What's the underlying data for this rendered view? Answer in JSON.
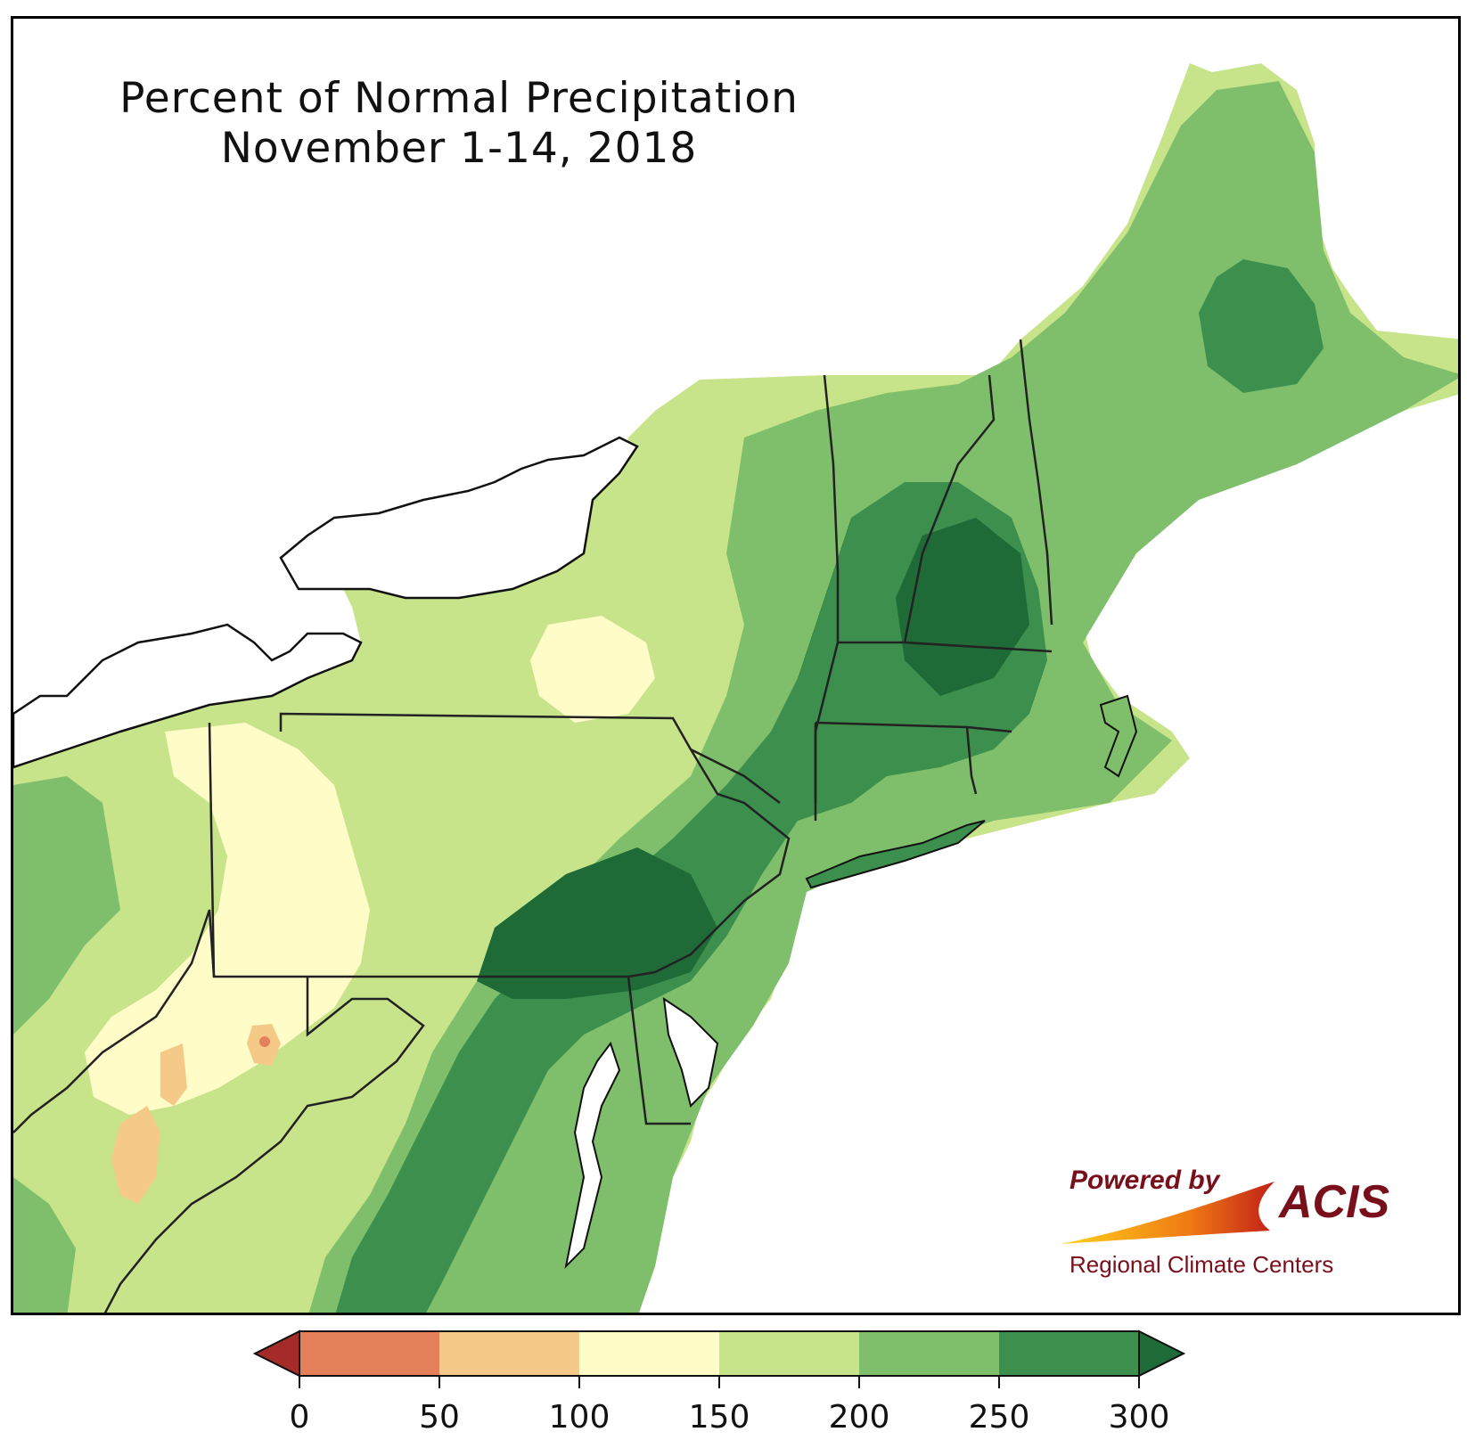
{
  "map": {
    "title_line1": "Percent of Normal Precipitation",
    "title_line2": "November 1-14, 2018",
    "colors": {
      "below_0": "#a52a2a",
      "0_50": "#e4805a",
      "50_100": "#f5c987",
      "100_150": "#fffcc8",
      "150_200": "#c7e48b",
      "200_250": "#7fbf6b",
      "250_300": "#3c8f4d",
      "above_300": "#1f6b38",
      "water": "#ffffff",
      "border": "#111111"
    }
  },
  "legend": {
    "ticks": [
      "0",
      "50",
      "100",
      "150",
      "200",
      "250",
      "300"
    ]
  },
  "logo": {
    "powered_by": "Powered by",
    "name": "ACIS",
    "subtitle": "Regional Climate Centers"
  }
}
